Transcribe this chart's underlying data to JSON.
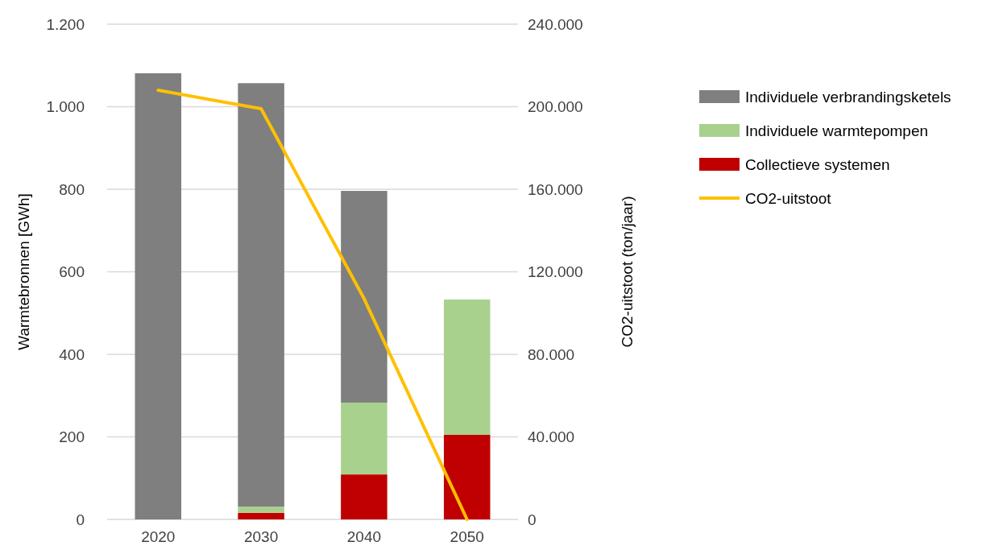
{
  "chart_data": {
    "type": "bar",
    "stacked": true,
    "ylabel": "Warmtebronnen [GWh]",
    "y2label": "CO2-uitstoot (ton/jaar)",
    "categories": [
      "2020",
      "2030",
      "2040",
      "2050"
    ],
    "series": [
      {
        "name": "Collectieve systemen",
        "color": "#c00000",
        "values": [
          0,
          16,
          109,
          205
        ]
      },
      {
        "name": "Individuele warmtepompen",
        "color": "#a9d18e",
        "values": [
          0,
          15,
          174,
          328
        ]
      },
      {
        "name": "Individuele verbrandingsketels",
        "color": "#7f7f7f",
        "values": [
          1081,
          1026,
          513,
          0
        ]
      },
      {
        "name": "CO2-uitstoot",
        "type": "line",
        "axis": "y2",
        "color": "#ffc000",
        "values": [
          208000,
          199000,
          107000,
          0
        ]
      }
    ],
    "ylim": [
      0,
      1200
    ],
    "yticks": [
      0,
      200,
      400,
      600,
      800,
      {
        "value": 1000,
        "label": "1.000"
      },
      {
        "value": 1200,
        "label": "1.200"
      }
    ],
    "y2lim": [
      0,
      240000
    ],
    "y2ticks": [
      0,
      {
        "value": 40000,
        "label": "40.000"
      },
      {
        "value": 80000,
        "label": "80.000"
      },
      {
        "value": 120000,
        "label": "120.000"
      },
      {
        "value": 160000,
        "label": "160.000"
      },
      {
        "value": 200000,
        "label": "200.000"
      },
      {
        "value": 240000,
        "label": "240.000"
      }
    ],
    "grid": "y",
    "legend": "top right",
    "marker": "none",
    "line_style": "solid"
  }
}
